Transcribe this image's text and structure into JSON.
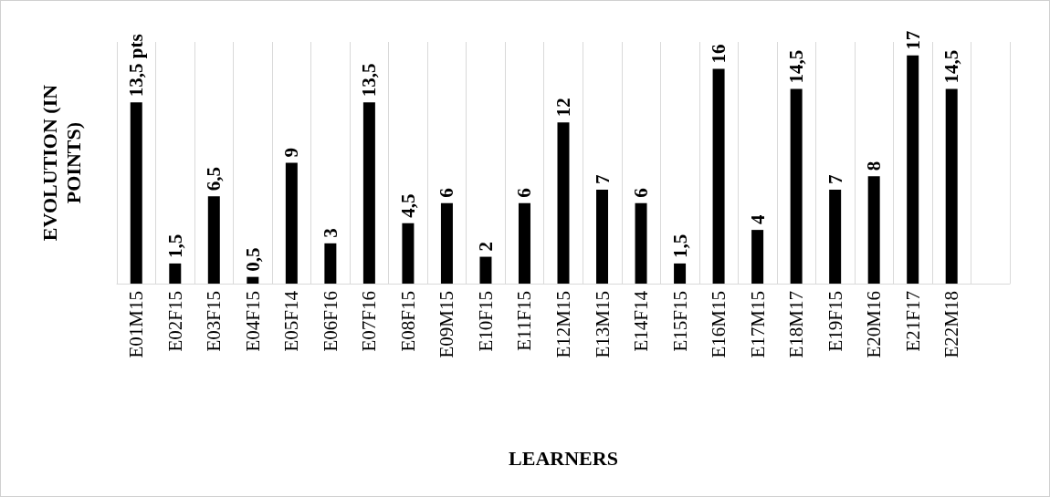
{
  "chart_data": {
    "type": "bar",
    "xlabel": "LEARNERS",
    "ylabel": "EVOLUTION (IN POINTS)",
    "categories": [
      "E01M15",
      "E02F15",
      "E03F15",
      "E04F15",
      "E05F14",
      "E06F16",
      "E07F16",
      "E08F15",
      "E09M15",
      "E10F15",
      "E11F15",
      "E12M15",
      "E13M15",
      "E14F14",
      "E15F15",
      "E16M15",
      "E17M15",
      "E18M17",
      "E19F15",
      "E20M16",
      "E21F17",
      "E22M18",
      null
    ],
    "values": [
      13.5,
      1.5,
      6.5,
      0.5,
      9,
      3,
      13.5,
      4.5,
      6,
      2,
      6,
      12,
      7,
      6,
      1.5,
      16,
      4,
      14.5,
      7,
      8,
      17,
      14.5,
      null
    ],
    "value_labels": [
      "13,5 pts",
      "1,5",
      "6,5",
      "0,5",
      "9",
      "3",
      "13,5",
      "4,5",
      "6",
      "2",
      "6",
      "12",
      "7",
      "6",
      "1,5",
      "16",
      "4",
      "14,5",
      "7",
      "8",
      "17",
      "14,5",
      null
    ],
    "color": "#000000",
    "grid": "x"
  }
}
